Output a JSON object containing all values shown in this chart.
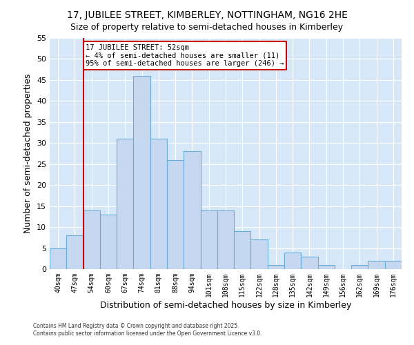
{
  "title": "17, JUBILEE STREET, KIMBERLEY, NOTTINGHAM, NG16 2HE",
  "subtitle": "Size of property relative to semi-detached houses in Kimberley",
  "xlabel": "Distribution of semi-detached houses by size in Kimberley",
  "ylabel": "Number of semi-detached properties",
  "bin_labels": [
    "40sqm",
    "47sqm",
    "54sqm",
    "60sqm",
    "67sqm",
    "74sqm",
    "81sqm",
    "88sqm",
    "94sqm",
    "101sqm",
    "108sqm",
    "115sqm",
    "122sqm",
    "128sqm",
    "135sqm",
    "142sqm",
    "149sqm",
    "156sqm",
    "162sqm",
    "169sqm",
    "176sqm"
  ],
  "bar_heights": [
    5,
    8,
    14,
    13,
    31,
    46,
    31,
    26,
    28,
    14,
    14,
    9,
    7,
    1,
    4,
    3,
    1,
    0,
    1,
    2,
    2
  ],
  "bar_color": "#c5d8ef",
  "bar_edge_color": "#6aacd8",
  "vline_color": "#cc0000",
  "vline_bin_index": 2,
  "annotation_title": "17 JUBILEE STREET: 52sqm",
  "annotation_line1": "← 4% of semi-detached houses are smaller (11)",
  "annotation_line2": "95% of semi-detached houses are larger (246) →",
  "ylim": [
    0,
    55
  ],
  "yticks": [
    0,
    5,
    10,
    15,
    20,
    25,
    30,
    35,
    40,
    45,
    50,
    55
  ],
  "footer1": "Contains HM Land Registry data © Crown copyright and database right 2025.",
  "footer2": "Contains public sector information licensed under the Open Government Licence v3.0.",
  "plot_bg_color": "#d6e8f7",
  "fig_bg_color": "#ffffff",
  "title_fontsize": 10,
  "subtitle_fontsize": 9,
  "annotation_box_edge_color": "#cc0000",
  "grid_color": "#ffffff"
}
